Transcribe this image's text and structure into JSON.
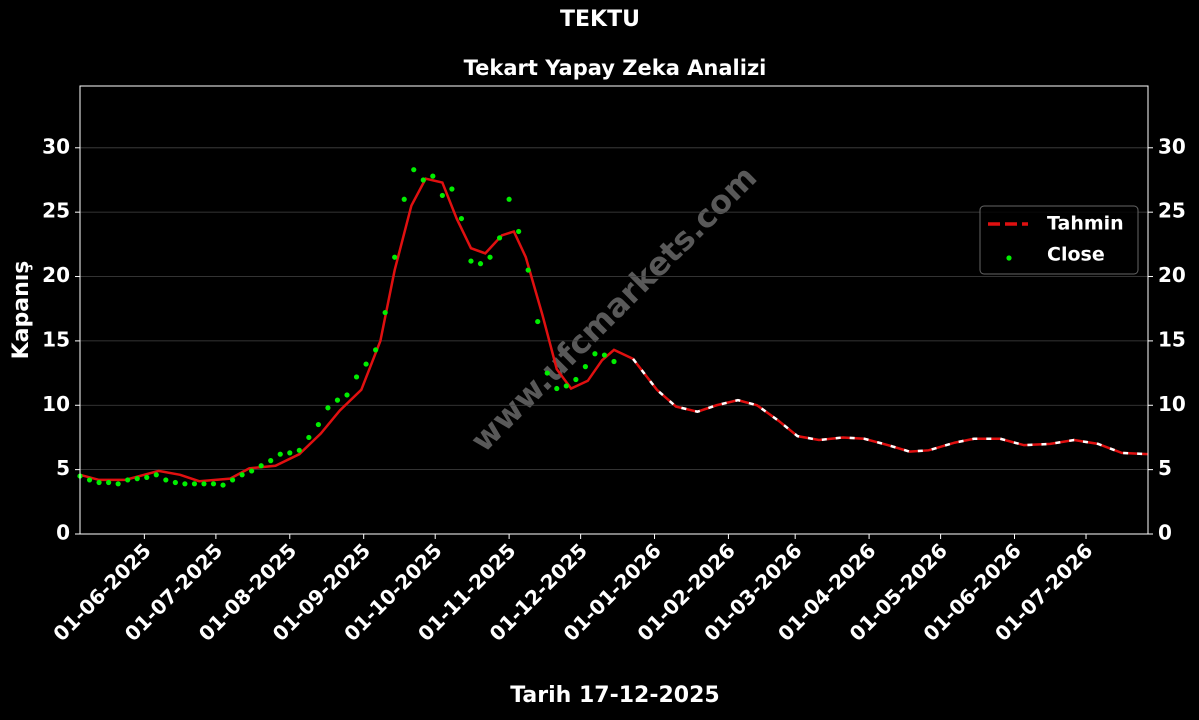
{
  "chart_data": {
    "type": "line",
    "title": "TEKTU",
    "subtitle": "Tekart Yapay Zeka Analizi",
    "x_label": "Tarih 17-12-2025",
    "y_label": "Kapanış",
    "watermark": "www.ufcmarkets.com",
    "xlim": [
      "2025-05-05",
      "2026-07-27"
    ],
    "ylim": [
      0,
      34.8
    ],
    "yticks": [
      0,
      5,
      10,
      15,
      20,
      25,
      30
    ],
    "xticks": [
      {
        "value": "2025-06-01",
        "label": "01-06-2025"
      },
      {
        "value": "2025-07-01",
        "label": "01-07-2025"
      },
      {
        "value": "2025-08-01",
        "label": "01-08-2025"
      },
      {
        "value": "2025-09-01",
        "label": "01-09-2025"
      },
      {
        "value": "2025-10-01",
        "label": "01-10-2025"
      },
      {
        "value": "2025-11-01",
        "label": "01-11-2025"
      },
      {
        "value": "2025-12-01",
        "label": "01-12-2025"
      },
      {
        "value": "2026-01-01",
        "label": "01-01-2026"
      },
      {
        "value": "2026-02-01",
        "label": "01-02-2026"
      },
      {
        "value": "2026-03-01",
        "label": "01-03-2026"
      },
      {
        "value": "2026-04-01",
        "label": "01-04-2026"
      },
      {
        "value": "2026-05-01",
        "label": "01-05-2026"
      },
      {
        "value": "2026-06-01",
        "label": "01-06-2026"
      },
      {
        "value": "2026-07-01",
        "label": "01-07-2026"
      }
    ],
    "grid": true,
    "legend": "upper-right",
    "forecast_start": "2025-12-17",
    "series": [
      {
        "name": "Tahmin",
        "style": "line",
        "color": "#e01010",
        "x": [
          "2025-05-05",
          "2025-05-13",
          "2025-05-24",
          "2025-06-07",
          "2025-06-16",
          "2025-06-24",
          "2025-07-07",
          "2025-07-15",
          "2025-07-26",
          "2025-08-05",
          "2025-08-14",
          "2025-08-22",
          "2025-08-31",
          "2025-09-08",
          "2025-09-14",
          "2025-09-21",
          "2025-09-27",
          "2025-10-04",
          "2025-10-10",
          "2025-10-16",
          "2025-10-22",
          "2025-10-29",
          "2025-11-03",
          "2025-11-08",
          "2025-11-15",
          "2025-11-21",
          "2025-11-27",
          "2025-12-04",
          "2025-12-10",
          "2025-12-15",
          "2025-12-23",
          "2026-01-02",
          "2026-01-10",
          "2026-01-19",
          "2026-01-27",
          "2026-02-05",
          "2026-02-13",
          "2026-02-22",
          "2026-03-02",
          "2026-03-11",
          "2026-03-21",
          "2026-03-30",
          "2026-04-09",
          "2026-04-18",
          "2026-04-26",
          "2026-05-07",
          "2026-05-15",
          "2026-05-26",
          "2026-06-05",
          "2026-06-16",
          "2026-06-26",
          "2026-07-06",
          "2026-07-16",
          "2026-07-27"
        ],
        "values": [
          4.6,
          4.2,
          4.2,
          4.9,
          4.6,
          4.1,
          4.3,
          5.1,
          5.3,
          6.2,
          7.8,
          9.6,
          11.2,
          15.0,
          20.5,
          25.5,
          27.6,
          27.3,
          24.5,
          22.2,
          21.8,
          23.2,
          23.5,
          21.5,
          17.0,
          12.8,
          11.3,
          11.9,
          13.5,
          14.3,
          13.6,
          11.2,
          9.9,
          9.5,
          10.0,
          10.4,
          10.0,
          8.8,
          7.6,
          7.3,
          7.5,
          7.4,
          6.9,
          6.4,
          6.5,
          7.1,
          7.4,
          7.4,
          6.9,
          7.0,
          7.3,
          7.0,
          6.3,
          6.2
        ]
      },
      {
        "name": "Close",
        "style": "scatter",
        "color": "#00ee00",
        "x": [
          "2025-05-05",
          "2025-05-09",
          "2025-05-13",
          "2025-05-17",
          "2025-05-21",
          "2025-05-25",
          "2025-05-29",
          "2025-06-02",
          "2025-06-06",
          "2025-06-10",
          "2025-06-14",
          "2025-06-18",
          "2025-06-22",
          "2025-06-26",
          "2025-06-30",
          "2025-07-04",
          "2025-07-08",
          "2025-07-12",
          "2025-07-16",
          "2025-07-20",
          "2025-07-24",
          "2025-07-28",
          "2025-08-01",
          "2025-08-05",
          "2025-08-09",
          "2025-08-13",
          "2025-08-17",
          "2025-08-21",
          "2025-08-25",
          "2025-08-29",
          "2025-09-02",
          "2025-09-06",
          "2025-09-10",
          "2025-09-14",
          "2025-09-18",
          "2025-09-22",
          "2025-09-26",
          "2025-09-30",
          "2025-10-04",
          "2025-10-08",
          "2025-10-12",
          "2025-10-16",
          "2025-10-20",
          "2025-10-24",
          "2025-10-28",
          "2025-11-01",
          "2025-11-05",
          "2025-11-09",
          "2025-11-13",
          "2025-11-17",
          "2025-11-21",
          "2025-11-25",
          "2025-11-29",
          "2025-12-03",
          "2025-12-07",
          "2025-12-11",
          "2025-12-15"
        ],
        "values": [
          4.5,
          4.2,
          4.0,
          4.0,
          3.9,
          4.2,
          4.3,
          4.4,
          4.6,
          4.2,
          4.0,
          3.9,
          3.9,
          3.9,
          3.9,
          3.8,
          4.2,
          4.6,
          4.9,
          5.3,
          5.7,
          6.2,
          6.3,
          6.5,
          7.5,
          8.5,
          9.8,
          10.4,
          10.8,
          12.2,
          13.2,
          14.3,
          17.2,
          21.5,
          26.0,
          28.3,
          27.5,
          27.8,
          26.3,
          26.8,
          24.5,
          21.2,
          21.0,
          21.5,
          23.0,
          26.0,
          23.5,
          20.5,
          16.5,
          12.5,
          11.3,
          11.5,
          12.0,
          13.0,
          14.0,
          13.9,
          13.4
        ]
      }
    ]
  }
}
